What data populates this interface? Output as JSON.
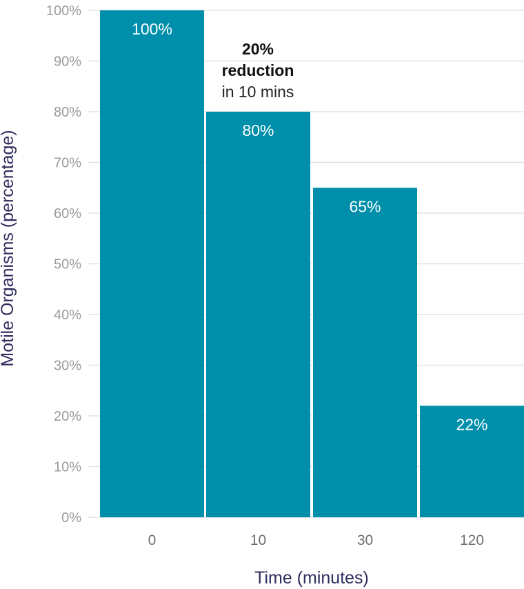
{
  "chart_data": {
    "type": "bar",
    "categories": [
      "0",
      "10",
      "30",
      "120"
    ],
    "values": [
      100,
      80,
      65,
      22
    ],
    "data_labels": [
      "100%",
      "80%",
      "65%",
      "22%"
    ],
    "xlabel": "Time (minutes)",
    "ylabel": "Motile Organisms (percentage)",
    "ylim": [
      0,
      100
    ],
    "yticks": [
      "0%",
      "10%",
      "20%",
      "30%",
      "40%",
      "50%",
      "60%",
      "70%",
      "80%",
      "90%",
      "100%"
    ],
    "grid": true,
    "bar_color": "#008fab",
    "annotation": {
      "line1": "20%",
      "line2": "reduction",
      "line3": "in 10 mins"
    }
  }
}
